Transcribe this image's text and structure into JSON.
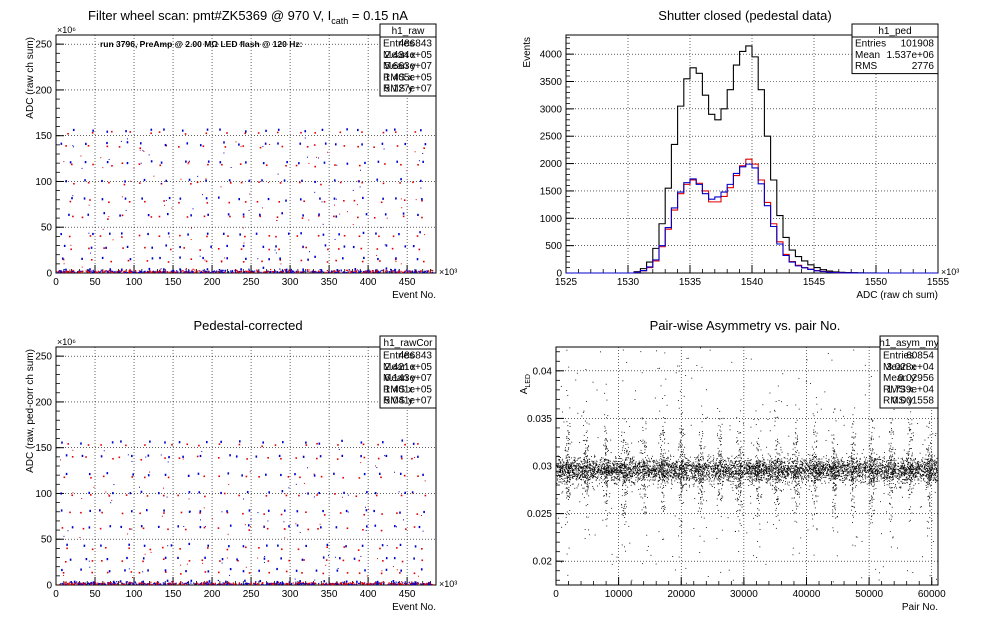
{
  "chart_data": [
    {
      "type": "scatter",
      "title": "Filter wheel scan: pmt#ZK5369 @   970 V, I",
      "title_sub": "cath",
      "title_tail": " = 0.15 nA",
      "annotation": "run 3796, PreAmp @ 2.00 MΩ LED flash @  120 Hz:",
      "xlabel": "Event No.",
      "ylabel": "ADC (raw ch sum)",
      "x_multiplier": "×10³",
      "y_multiplier": "×10⁶",
      "xlim": [
        0,
        487
      ],
      "ylim": [
        0,
        260
      ],
      "xticks": [
        0,
        50,
        100,
        150,
        200,
        250,
        300,
        350,
        400,
        450
      ],
      "yticks": [
        0,
        50,
        100,
        150,
        200,
        250
      ],
      "grid": true,
      "stats": {
        "name": "h1_raw",
        "rows": [
          [
            "Entries",
            "486843"
          ],
          [
            "Mean x",
            "2.434e+05"
          ],
          [
            "Mean y",
            "5.663e+07"
          ],
          [
            "RMS x",
            "1.405e+05"
          ],
          [
            "RMS y",
            "5.127e+07"
          ]
        ]
      },
      "levels": [
        0,
        3,
        15,
        28,
        42,
        63,
        80,
        100,
        120,
        140,
        155
      ],
      "cycle_starts": [
        5,
        30,
        55,
        80,
        105,
        130,
        155,
        180,
        205,
        230,
        255,
        280,
        305,
        330,
        355,
        380,
        405,
        430,
        455
      ],
      "colors": {
        "red": "#e00000",
        "blue": "#0000cc"
      }
    },
    {
      "type": "histogram",
      "title": "Shutter closed (pedestal data)",
      "xlabel": "ADC (raw ch sum)",
      "ylabel": "Events",
      "x_multiplier": "×10³",
      "xlim": [
        1525,
        1555
      ],
      "ylim": [
        0,
        4350
      ],
      "xticks": [
        1525,
        1530,
        1535,
        1540,
        1545,
        1550,
        1555
      ],
      "yticks": [
        0,
        500,
        1000,
        1500,
        2000,
        2500,
        3000,
        3500,
        4000
      ],
      "grid": true,
      "stats": {
        "name": "h1_ped",
        "rows": [
          [
            "Entries",
            "101908"
          ],
          [
            "Mean",
            "1.537e+06"
          ],
          [
            "RMS",
            "2776"
          ]
        ]
      },
      "bin_width": 0.5,
      "x_start": 1525,
      "series": [
        {
          "color": "#000000",
          "values": [
            0,
            0,
            0,
            0,
            0,
            0,
            0,
            0,
            0,
            0,
            0,
            25,
            80,
            200,
            450,
            900,
            1550,
            2350,
            3050,
            3550,
            3750,
            3650,
            3250,
            2900,
            2800,
            3000,
            3350,
            3800,
            4050,
            4150,
            3950,
            3350,
            2500,
            1700,
            1050,
            650,
            420,
            300,
            220,
            150,
            100,
            60,
            35,
            20,
            12,
            8,
            5,
            3,
            1,
            1,
            0,
            0,
            0,
            0,
            0,
            0,
            0,
            0,
            0,
            0
          ]
        },
        {
          "color": "#e00000",
          "values": [
            0,
            0,
            0,
            0,
            0,
            0,
            0,
            0,
            0,
            0,
            0,
            10,
            40,
            100,
            220,
            480,
            800,
            1150,
            1450,
            1620,
            1700,
            1640,
            1500,
            1300,
            1300,
            1400,
            1560,
            1780,
            1960,
            2080,
            1990,
            1700,
            1290,
            900,
            570,
            340,
            210,
            140,
            100,
            70,
            45,
            28,
            15,
            8,
            4,
            2,
            1,
            0,
            0,
            0,
            0,
            0,
            0,
            0,
            0,
            0,
            0,
            0,
            0,
            0
          ]
        },
        {
          "color": "#0000cc",
          "values": [
            0,
            0,
            0,
            0,
            0,
            0,
            0,
            0,
            0,
            0,
            0,
            12,
            45,
            110,
            240,
            500,
            830,
            1190,
            1480,
            1650,
            1720,
            1620,
            1450,
            1350,
            1390,
            1480,
            1620,
            1820,
            1940,
            1990,
            1920,
            1630,
            1230,
            850,
            530,
            320,
            200,
            130,
            95,
            65,
            40,
            25,
            13,
            7,
            3,
            2,
            1,
            0,
            0,
            0,
            0,
            0,
            0,
            0,
            0,
            0,
            0,
            0,
            0,
            0
          ]
        }
      ]
    },
    {
      "type": "scatter",
      "title": "Pedestal-corrected",
      "xlabel": "Event No.",
      "ylabel": "ADC (raw, ped-corr ch sum)",
      "x_multiplier": "×10³",
      "y_multiplier": "×10⁶",
      "xlim": [
        0,
        487
      ],
      "ylim": [
        0,
        260
      ],
      "xticks": [
        0,
        50,
        100,
        150,
        200,
        250,
        300,
        350,
        400,
        450
      ],
      "yticks": [
        0,
        50,
        100,
        150,
        200,
        250
      ],
      "grid": true,
      "stats": {
        "name": "h1_rawCor",
        "rows": [
          [
            "Entries",
            "486843"
          ],
          [
            "Mean x",
            "2.421e+05"
          ],
          [
            "Mean y",
            "6.143e+07"
          ],
          [
            "RMS x",
            "1.401e+05"
          ],
          [
            "RMS y",
            "5.041e+07"
          ]
        ]
      },
      "levels": [
        0,
        3,
        15,
        28,
        42,
        63,
        80,
        100,
        120,
        140,
        155
      ],
      "cycle_starts": [
        5,
        30,
        55,
        80,
        105,
        130,
        155,
        180,
        205,
        230,
        255,
        280,
        305,
        330,
        355,
        380,
        405,
        430,
        455
      ],
      "colors": {
        "red": "#e00000",
        "blue": "#0000cc"
      }
    },
    {
      "type": "scatter",
      "title": "Pair-wise Asymmetry vs. pair No.",
      "xlabel": "Pair No.",
      "ylabel": "A",
      "ylabel_sub": "LED",
      "xlim": [
        0,
        61000
      ],
      "ylim": [
        0.0175,
        0.0425
      ],
      "xticks": [
        0,
        10000,
        20000,
        30000,
        40000,
        50000,
        60000
      ],
      "yticks": [
        0.02,
        0.025,
        0.03,
        0.035,
        0.04
      ],
      "ytick_labels": [
        "0.02",
        "0.025",
        "0.03",
        "0.035",
        "0.04"
      ],
      "grid": true,
      "stats": {
        "name": "h1_asym_my",
        "rows": [
          [
            "Entries",
            "60854"
          ],
          [
            "Mean x",
            "3.028e+04"
          ],
          [
            "Mean y",
            "0.02956"
          ],
          [
            "RMS x",
            "1.739e+04"
          ],
          [
            "RMS y",
            "0.001558"
          ]
        ]
      },
      "band_center": 0.0296,
      "band_halfwidth": 0.0012,
      "spike_x": [
        1800,
        4800,
        7900,
        10900,
        14000,
        17000,
        20000,
        23100,
        26100,
        29200,
        32200,
        35200,
        38300,
        41300,
        44400,
        47400,
        50400,
        53500,
        56500,
        59500
      ],
      "color": "#000000"
    }
  ]
}
